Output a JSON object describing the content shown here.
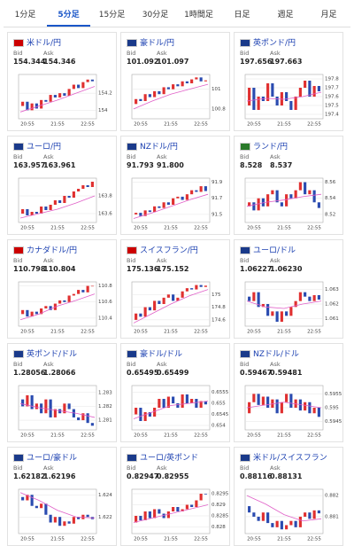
{
  "tabs": [
    "1分足",
    "5分足",
    "15分足",
    "30分足",
    "1時間足",
    "日足",
    "週足",
    "月足"
  ],
  "active_tab": 1,
  "bid_label": "Bid",
  "ask_label": "Ask",
  "up_color": "#e03030",
  "down_color": "#2a4bb0",
  "ma_color": "#e060c8",
  "panels": [
    {
      "name": "米ドル/円",
      "bid": "154.344",
      "ask": "154.346",
      "xlabels": [
        "20:55",
        "21:55",
        "22:55"
      ],
      "ylim": [
        153.9,
        154.42
      ],
      "yticks": [
        154,
        154.2
      ],
      "close": [
        154.05,
        154.1,
        154.0,
        154.08,
        154.02,
        154.12,
        154.1,
        154.18,
        154.15,
        154.2,
        154.17,
        154.25,
        154.3,
        154.26,
        154.33,
        154.36,
        154.34
      ],
      "ma": [
        153.98,
        154.05,
        154.12,
        154.2,
        154.28
      ]
    },
    {
      "name": "豪ドル/円",
      "bid": "101.092",
      "ask": "101.097",
      "xlabels": [
        "20:55",
        "21:55",
        "22:55"
      ],
      "ylim": [
        100.7,
        101.15
      ],
      "yticks": [
        100.8,
        101
      ],
      "close": [
        100.85,
        100.9,
        100.88,
        100.95,
        100.92,
        100.98,
        100.95,
        101.02,
        101.0,
        101.05,
        101.03,
        101.08,
        101.06,
        101.1,
        101.12,
        101.08,
        101.09
      ],
      "ma": [
        100.8,
        100.88,
        100.95,
        101.0,
        101.05
      ]
    },
    {
      "name": "英ポンド/円",
      "bid": "197.656",
      "ask": "197.663",
      "xlabels": [
        "20:55",
        "21:55",
        "22:55"
      ],
      "ylim": [
        197.35,
        197.85
      ],
      "yticks": [
        197.4,
        197.5,
        197.6,
        197.7,
        197.8
      ],
      "close": [
        197.5,
        197.7,
        197.45,
        197.6,
        197.55,
        197.75,
        197.6,
        197.5,
        197.65,
        197.55,
        197.45,
        197.6,
        197.7,
        197.78,
        197.6,
        197.72,
        197.66
      ],
      "ma": [
        197.55,
        197.58,
        197.57,
        197.6,
        197.65
      ]
    },
    {
      "name": "ユーロ/円",
      "bid": "163.957",
      "ask": "163.961",
      "xlabels": [
        "20:55",
        "21:55",
        "22:55"
      ],
      "ylim": [
        163.5,
        164.0
      ],
      "yticks": [
        163.6,
        163.8
      ],
      "close": [
        163.6,
        163.65,
        163.58,
        163.62,
        163.6,
        163.68,
        163.64,
        163.7,
        163.75,
        163.72,
        163.8,
        163.78,
        163.85,
        163.88,
        163.92,
        163.9,
        163.96
      ],
      "ma": [
        163.55,
        163.6,
        163.65,
        163.72,
        163.8
      ]
    },
    {
      "name": "NZドル/円",
      "bid": "91.793",
      "ask": "91.800",
      "xlabels": [
        "20:55",
        "21:55",
        "22:55"
      ],
      "ylim": [
        91.4,
        91.95
      ],
      "yticks": [
        91.5,
        91.7,
        91.9
      ],
      "close": [
        91.5,
        91.52,
        91.48,
        91.55,
        91.53,
        91.6,
        91.58,
        91.65,
        91.62,
        91.7,
        91.72,
        91.68,
        91.75,
        91.8,
        91.78,
        91.85,
        91.79
      ],
      "ma": [
        91.45,
        91.52,
        91.6,
        91.68,
        91.75
      ]
    },
    {
      "name": "ランド/円",
      "bid": "8.528",
      "ask": "8.537",
      "xlabels": [
        "20:55",
        "21:55",
        "22:55"
      ],
      "ylim": [
        8.51,
        8.565
      ],
      "yticks": [
        8.52,
        8.54,
        8.56
      ],
      "close": [
        8.53,
        8.535,
        8.525,
        8.54,
        8.53,
        8.545,
        8.55,
        8.535,
        8.53,
        8.545,
        8.54,
        8.55,
        8.56,
        8.545,
        8.55,
        8.535,
        8.528
      ],
      "ma": [
        8.53,
        8.535,
        8.538,
        8.542,
        8.545
      ]
    },
    {
      "name": "カナダドル/円",
      "bid": "110.798",
      "ask": "110.804",
      "xlabels": [
        "20:55",
        "21:55",
        "22:55"
      ],
      "ylim": [
        110.3,
        110.85
      ],
      "yticks": [
        110.4,
        110.6,
        110.8
      ],
      "close": [
        110.45,
        110.5,
        110.42,
        110.48,
        110.45,
        110.52,
        110.55,
        110.5,
        110.58,
        110.62,
        110.6,
        110.68,
        110.7,
        110.75,
        110.72,
        110.8,
        110.8
      ],
      "ma": [
        110.38,
        110.45,
        110.55,
        110.62,
        110.7
      ]
    },
    {
      "name": "スイスフラン/円",
      "bid": "175.136",
      "ask": "175.152",
      "xlabels": [
        "20:55",
        "21:55",
        "22:55"
      ],
      "ylim": [
        174.5,
        175.2
      ],
      "yticks": [
        174.6,
        174.8,
        175
      ],
      "close": [
        174.6,
        174.7,
        174.65,
        174.8,
        174.75,
        174.9,
        174.85,
        174.95,
        175.0,
        174.9,
        174.95,
        175.05,
        175.1,
        175.08,
        175.15,
        175.12,
        175.14
      ],
      "ma": [
        174.55,
        174.7,
        174.85,
        174.98,
        175.08
      ]
    },
    {
      "name": "ユーロ/ドル",
      "bid": "1.06227",
      "ask": "1.06230",
      "xlabels": [
        "20:55",
        "21:55",
        "22:55"
      ],
      "ylim": [
        1.0605,
        1.0635
      ],
      "yticks": [
        1.061,
        1.062,
        1.063
      ],
      "close": [
        1.0625,
        1.0622,
        1.0628,
        1.0618,
        1.062,
        1.0612,
        1.0615,
        1.0608,
        1.0615,
        1.0612,
        1.0618,
        1.0622,
        1.0628,
        1.0625,
        1.0622,
        1.0626,
        1.0623
      ],
      "ma": [
        1.0622,
        1.0618,
        1.0617,
        1.062,
        1.0622
      ]
    },
    {
      "name": "英ポンド/ドル",
      "bid": "1.28056",
      "ask": "1.28066",
      "xlabels": [
        "20:55",
        "21:55",
        "22:55"
      ],
      "ylim": [
        1.2803,
        1.2835
      ],
      "yticks": [
        1.281,
        1.282,
        1.283
      ],
      "close": [
        1.2825,
        1.282,
        1.2828,
        1.2818,
        1.2822,
        1.2815,
        1.2825,
        1.2812,
        1.2818,
        1.2815,
        1.2822,
        1.2818,
        1.2812,
        1.281,
        1.2815,
        1.2808,
        1.2806
      ],
      "ma": [
        1.2822,
        1.2819,
        1.2817,
        1.2815,
        1.2812
      ]
    },
    {
      "name": "豪ドル/ドル",
      "bid": "0.65495",
      "ask": "0.65499",
      "xlabels": [
        "20:55",
        "21:55",
        "22:55"
      ],
      "ylim": [
        0.6538,
        0.6558
      ],
      "yticks": [
        0.654,
        0.6545,
        0.655,
        0.6555
      ],
      "close": [
        0.6545,
        0.6548,
        0.6542,
        0.6546,
        0.6544,
        0.6548,
        0.6552,
        0.6548,
        0.6553,
        0.655,
        0.6548,
        0.6554,
        0.655,
        0.6552,
        0.6548,
        0.6551,
        0.65495
      ],
      "ma": [
        0.6543,
        0.6546,
        0.6549,
        0.655,
        0.6551
      ]
    },
    {
      "name": "NZドル/ドル",
      "bid": "0.59467",
      "ask": "0.59481",
      "xlabels": [
        "20:55",
        "21:55",
        "22:55"
      ],
      "ylim": [
        0.5942,
        0.5958
      ],
      "yticks": [
        0.5945,
        0.595,
        0.5955
      ],
      "close": [
        0.5948,
        0.5952,
        0.5955,
        0.5951,
        0.5954,
        0.595,
        0.5953,
        0.5948,
        0.5952,
        0.5955,
        0.595,
        0.5953,
        0.5949,
        0.5952,
        0.5948,
        0.595,
        0.59467
      ],
      "ma": [
        0.595,
        0.5951,
        0.5952,
        0.5951,
        0.595
      ]
    },
    {
      "name": "ユーロ/豪ドル",
      "bid": "1.62182",
      "ask": "1.62196",
      "xlabels": [
        "20:55",
        "21:55",
        "22:55"
      ],
      "ylim": [
        1.6205,
        1.6245
      ],
      "yticks": [
        1.622,
        1.624
      ],
      "close": [
        1.6238,
        1.6235,
        1.624,
        1.623,
        1.6228,
        1.6232,
        1.6222,
        1.6215,
        1.622,
        1.6212,
        1.6216,
        1.6214,
        1.622,
        1.6218,
        1.6222,
        1.622,
        1.6218
      ],
      "ma": [
        1.6242,
        1.6235,
        1.6226,
        1.622,
        1.6219
      ]
    },
    {
      "name": "ユーロ/英ポンド",
      "bid": "0.82947",
      "ask": "0.82955",
      "xlabels": [
        "20:55",
        "21:55",
        "22:55"
      ],
      "ylim": [
        0.8277,
        0.8297
      ],
      "yticks": [
        0.828,
        0.8285,
        0.829,
        0.8295
      ],
      "close": [
        0.8282,
        0.8285,
        0.8283,
        0.8287,
        0.8284,
        0.8288,
        0.8286,
        0.8284,
        0.8287,
        0.8289,
        0.8287,
        0.8288,
        0.829,
        0.8289,
        0.8292,
        0.8295,
        0.82947
      ],
      "ma": [
        0.8282,
        0.8284,
        0.8286,
        0.8288,
        0.829
      ]
    },
    {
      "name": "米ドル/スイスフラン",
      "bid": "0.88116",
      "ask": "0.88131",
      "xlabels": [
        "20:55",
        "21:55",
        "22:55"
      ],
      "ylim": [
        0.8802,
        0.8823
      ],
      "yticks": [
        0.881,
        0.882
      ],
      "close": [
        0.8815,
        0.8812,
        0.881,
        0.8808,
        0.8812,
        0.8807,
        0.8805,
        0.8808,
        0.8804,
        0.8806,
        0.8808,
        0.8805,
        0.881,
        0.8812,
        0.8809,
        0.8813,
        0.88116
      ],
      "ma": [
        0.882,
        0.8816,
        0.8811,
        0.8808,
        0.8809
      ]
    }
  ]
}
